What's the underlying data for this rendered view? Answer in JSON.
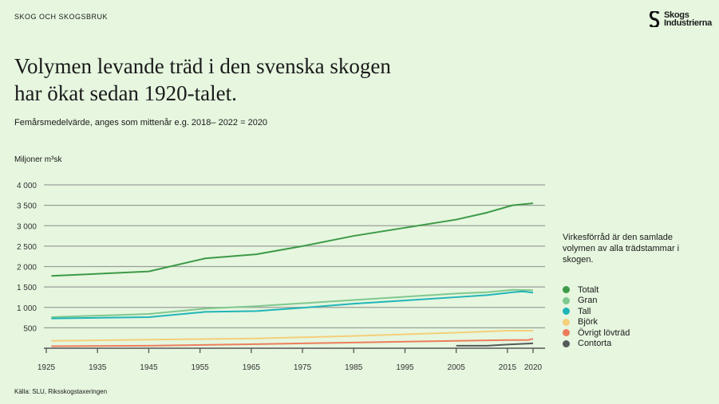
{
  "section_label": "SKOG OCH SKOGSBRUK",
  "logo": {
    "text_line1": "Skogs",
    "text_line2": "Industrierna"
  },
  "title_line1": "Volymen levande träd i den svenska skogen",
  "title_line2": "har ökat sedan 1920-talet.",
  "subtitle": "Femårsmedelvärde, anges som mittenår e.g. 2018– 2022 = 2020",
  "note": "Virkesförråd är den samlade volymen av alla trädstammar i skogen.",
  "source": "Källa: SLU, Riksskogstaxeringen",
  "chart_data": {
    "type": "line",
    "ylabel": "Miljoner m³sk",
    "ylim": [
      0,
      4000
    ],
    "xlim": [
      1925,
      2020
    ],
    "grid": true,
    "legend_placement": "right",
    "y_ticks": [
      {
        "v": 500,
        "label": "500"
      },
      {
        "v": 1000,
        "label": "1 000"
      },
      {
        "v": 1500,
        "label": "1 500"
      },
      {
        "v": 2000,
        "label": "2 000"
      },
      {
        "v": 2500,
        "label": "2 500"
      },
      {
        "v": 3000,
        "label": "3 000"
      },
      {
        "v": 3500,
        "label": "3 500"
      },
      {
        "v": 4000,
        "label": "4 000"
      }
    ],
    "x_ticks": [
      1925,
      1935,
      1945,
      1955,
      1965,
      1975,
      1985,
      1995,
      2005,
      2015,
      2020
    ],
    "series": [
      {
        "name": "Totalt",
        "color": "#3c9a46",
        "width": 2,
        "points": [
          [
            1926,
            1770
          ],
          [
            1945,
            1880
          ],
          [
            1956,
            2200
          ],
          [
            1966,
            2300
          ],
          [
            1975,
            2500
          ],
          [
            1985,
            2750
          ],
          [
            1995,
            2950
          ],
          [
            2005,
            3150
          ],
          [
            2011,
            3320
          ],
          [
            2016,
            3500
          ],
          [
            2020,
            3550
          ]
        ]
      },
      {
        "name": "Gran",
        "color": "#7fc88e",
        "width": 2,
        "points": [
          [
            1926,
            760
          ],
          [
            1945,
            840
          ],
          [
            1956,
            970
          ],
          [
            1966,
            1030
          ],
          [
            1985,
            1180
          ],
          [
            2005,
            1340
          ],
          [
            2011,
            1370
          ],
          [
            2016,
            1430
          ],
          [
            2020,
            1420
          ]
        ]
      },
      {
        "name": "Tall",
        "color": "#1fb5b8",
        "width": 2,
        "points": [
          [
            1926,
            730
          ],
          [
            1945,
            760
          ],
          [
            1956,
            890
          ],
          [
            1966,
            910
          ],
          [
            1975,
            990
          ],
          [
            1985,
            1090
          ],
          [
            2005,
            1250
          ],
          [
            2011,
            1300
          ],
          [
            2016,
            1370
          ],
          [
            2018,
            1390
          ],
          [
            2020,
            1360
          ]
        ]
      },
      {
        "name": "Björk",
        "color": "#f5cf79",
        "width": 2,
        "points": [
          [
            1926,
            180
          ],
          [
            1945,
            210
          ],
          [
            1966,
            240
          ],
          [
            1985,
            300
          ],
          [
            2005,
            380
          ],
          [
            2015,
            430
          ],
          [
            2020,
            430
          ]
        ]
      },
      {
        "name": "Övrigt lövträd",
        "color": "#ec7d5c",
        "width": 2,
        "points": [
          [
            1926,
            50
          ],
          [
            1945,
            60
          ],
          [
            1966,
            100
          ],
          [
            1985,
            140
          ],
          [
            2005,
            180
          ],
          [
            2015,
            200
          ],
          [
            2019,
            200
          ],
          [
            2020,
            230
          ]
        ]
      },
      {
        "name": "Contorta",
        "color": "#555a5a",
        "width": 2,
        "points": [
          [
            2005,
            60
          ],
          [
            2011,
            60
          ],
          [
            2015,
            90
          ],
          [
            2020,
            120
          ]
        ]
      }
    ]
  }
}
